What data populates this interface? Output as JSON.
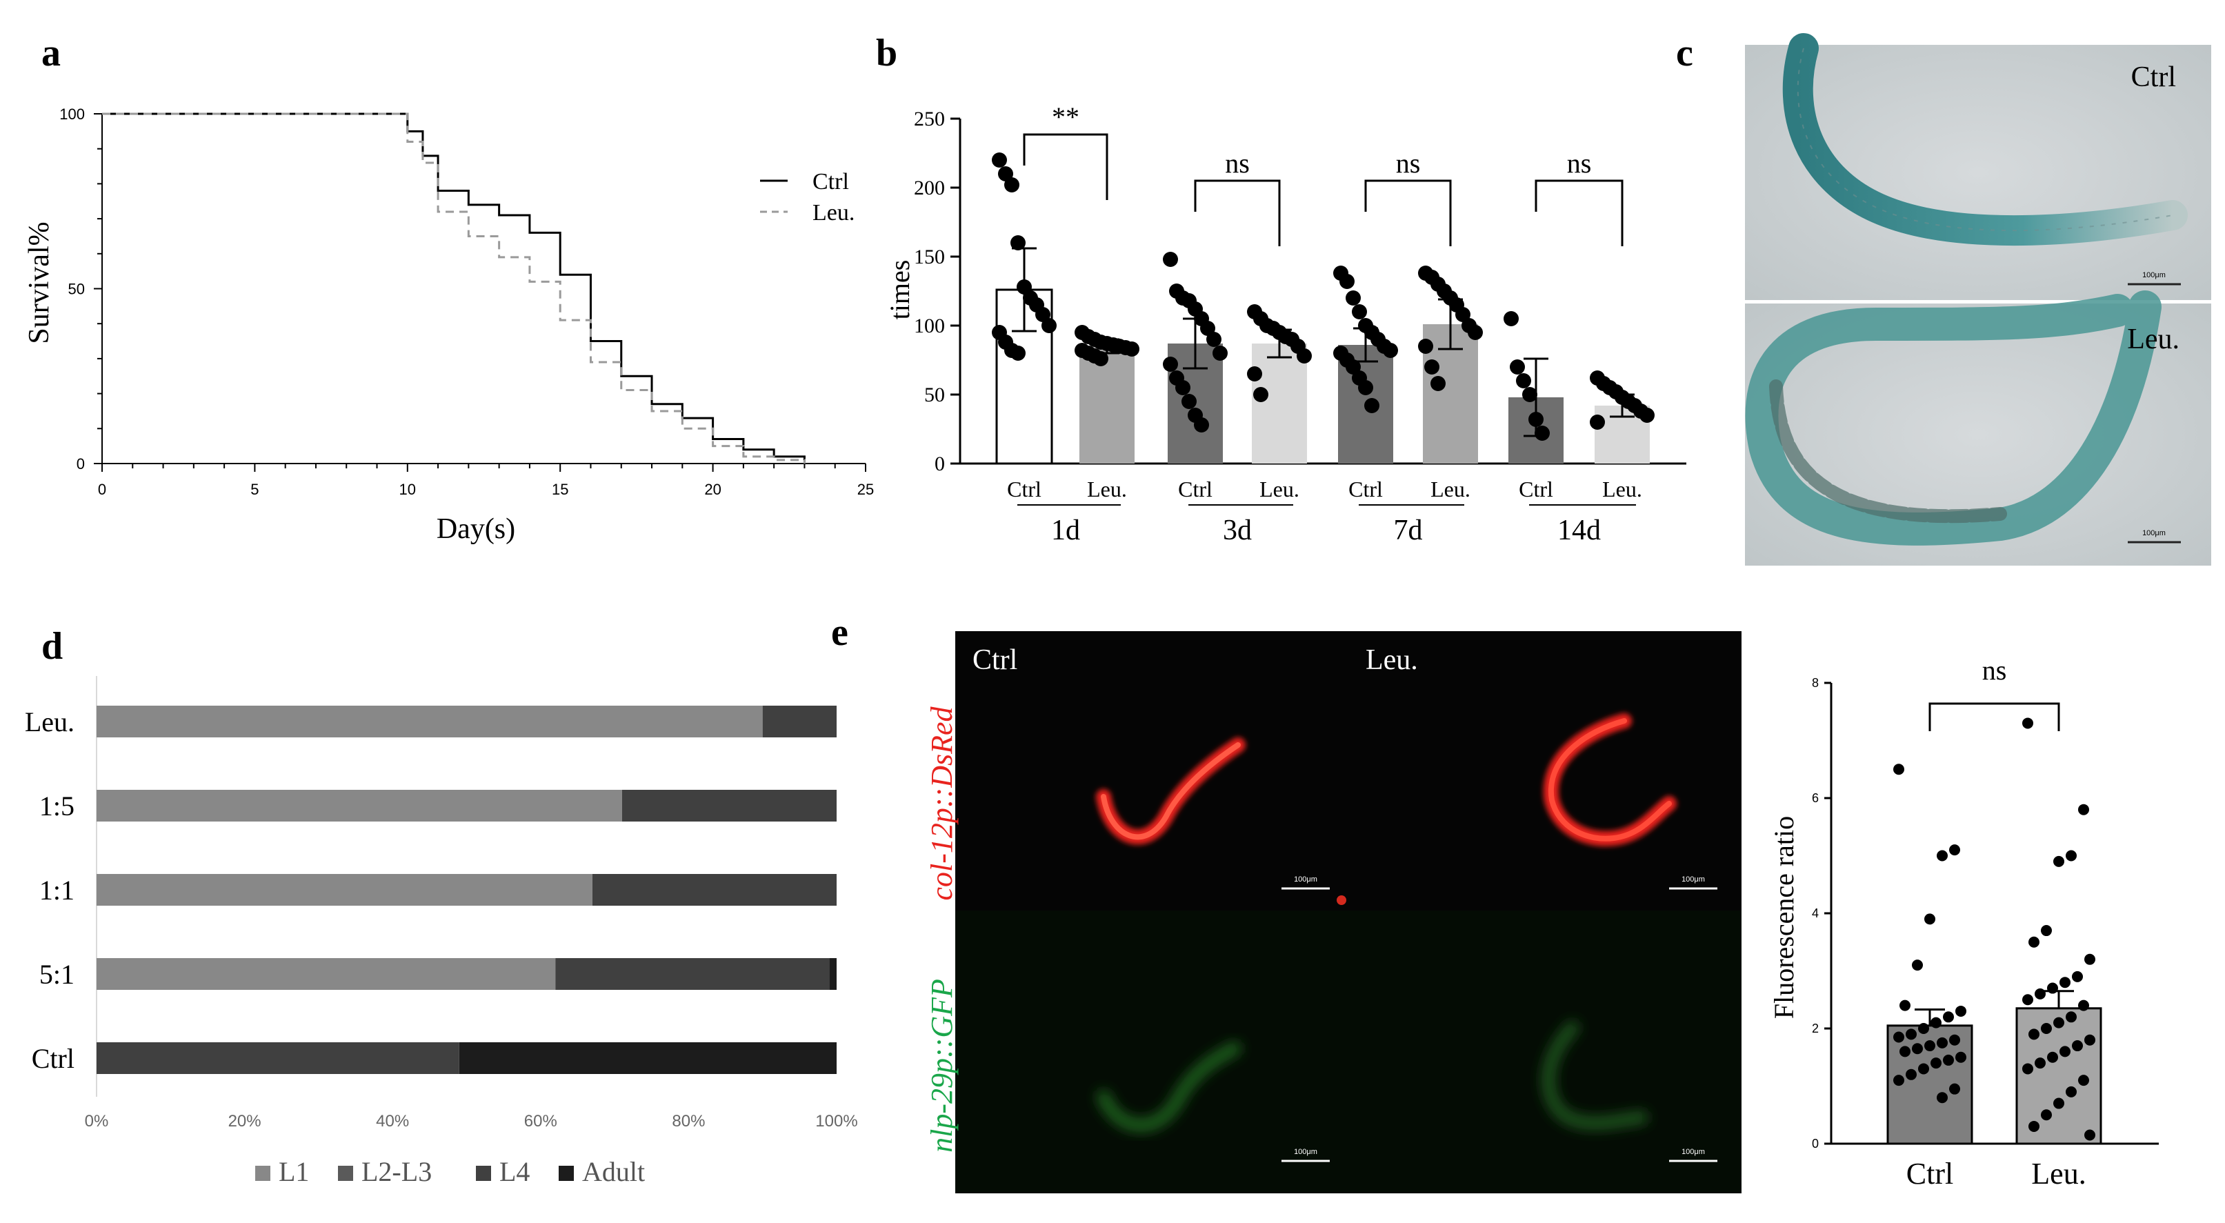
{
  "panels": {
    "a": {
      "letter": "a"
    },
    "b": {
      "letter": "b"
    },
    "c": {
      "letter": "c",
      "ctrl_label": "Ctrl",
      "leu_label": "Leu.",
      "scalebar_label": "100μm"
    },
    "d": {
      "letter": "d"
    },
    "e": {
      "letter": "e",
      "ctrl_label": "Ctrl",
      "leu_label": "Leu.",
      "red_channel_label": "col-12p::DsRed",
      "green_channel_label": "nlp-29p::GFP",
      "scalebar_label": "100μm"
    }
  },
  "colors": {
    "ctrl_line": "#000000",
    "leu_line": "#9a9a9a",
    "micrograph_bg": "#c9cfd1",
    "worm_teal": "#3f8f93",
    "dsred": "#e8231e",
    "gfp": "#1d5a1d"
  },
  "chart_data": [
    {
      "id": "a",
      "type": "line",
      "title": "",
      "xlabel": "Day(s)",
      "ylabel": "Survival%",
      "xlim": [
        0,
        25
      ],
      "ylim": [
        0,
        100
      ],
      "xticks": [
        0,
        5,
        10,
        15,
        20,
        25
      ],
      "yticks": [
        0,
        50,
        100
      ],
      "legend_position": "right",
      "series": [
        {
          "name": "Ctrl",
          "style": "solid",
          "x": [
            0,
            10,
            10.5,
            11,
            12,
            13,
            14,
            15,
            16,
            17,
            18,
            19,
            20,
            21,
            22,
            23
          ],
          "y": [
            100,
            95,
            88,
            78,
            74,
            71,
            66,
            54,
            35,
            25,
            17,
            13,
            7,
            4,
            2,
            0
          ]
        },
        {
          "name": "Leu.",
          "style": "dashed",
          "x": [
            0,
            10,
            10.5,
            11,
            12,
            13,
            14,
            15,
            16,
            17,
            18,
            19,
            20,
            21,
            22,
            23
          ],
          "y": [
            100,
            92,
            86,
            72,
            65,
            59,
            52,
            41,
            29,
            21,
            15,
            10,
            5,
            2,
            1,
            0
          ]
        }
      ]
    },
    {
      "id": "b",
      "type": "bar",
      "title": "",
      "xlabel": "",
      "ylabel": "times",
      "ylim": [
        0,
        250
      ],
      "yticks": [
        0,
        50,
        100,
        150,
        200,
        250
      ],
      "bar_labels": [
        "Ctrl",
        "Leu.",
        "Ctrl",
        "Leu.",
        "Ctrl",
        "Leu.",
        "Ctrl",
        "Leu."
      ],
      "groups": [
        "1d",
        "3d",
        "7d",
        "14d"
      ],
      "significance": [
        "**",
        "ns",
        "ns",
        "ns"
      ],
      "bar_fill": [
        "#ffffff",
        "#a6a6a6",
        "#6f6f6f",
        "#d9d9d9",
        "#6f6f6f",
        "#a6a6a6",
        "#6f6f6f",
        "#d9d9d9"
      ],
      "means": [
        126,
        85,
        87,
        87,
        86,
        101,
        48,
        42
      ],
      "errors": [
        30,
        5,
        18,
        10,
        12,
        18,
        28,
        8
      ],
      "points": [
        [
          220,
          210,
          202,
          160,
          128,
          120,
          115,
          108,
          100,
          95,
          88,
          82,
          80
        ],
        [
          95,
          92,
          90,
          88,
          87,
          86,
          85,
          84,
          83,
          82,
          80,
          78,
          76
        ],
        [
          148,
          125,
          120,
          118,
          112,
          105,
          98,
          90,
          80,
          72,
          62,
          55,
          45,
          35,
          28
        ],
        [
          110,
          105,
          100,
          98,
          95,
          92,
          90,
          85,
          78,
          65,
          50
        ],
        [
          138,
          132,
          120,
          110,
          100,
          95,
          90,
          85,
          82,
          80,
          75,
          70,
          62,
          55,
          42
        ],
        [
          138,
          135,
          130,
          125,
          120,
          115,
          108,
          100,
          95,
          85,
          70,
          58
        ],
        [
          105,
          70,
          60,
          50,
          32,
          22
        ],
        [
          62,
          58,
          55,
          52,
          48,
          45,
          42,
          38,
          35,
          30
        ]
      ]
    },
    {
      "id": "d",
      "type": "bar",
      "title": "",
      "orientation": "horizontal",
      "stacked": true,
      "xlim": [
        0,
        100
      ],
      "xticks": [
        "0%",
        "20%",
        "40%",
        "60%",
        "80%",
        "100%"
      ],
      "categories": [
        "Leu.",
        "1:5",
        "1:1",
        "5:1",
        "Ctrl"
      ],
      "legend_position": "bottom",
      "series": [
        {
          "name": "L1",
          "color": "#888888",
          "values": [
            90,
            71,
            67,
            62,
            0
          ]
        },
        {
          "name": "L2-L3",
          "color": "#5a5a5a",
          "values": [
            0,
            0,
            0,
            0,
            0
          ]
        },
        {
          "name": "L4",
          "color": "#404040",
          "values": [
            10,
            29,
            33,
            37,
            49
          ]
        },
        {
          "name": "Adult",
          "color": "#1c1c1c",
          "values": [
            0,
            0,
            0,
            1,
            51
          ]
        }
      ]
    },
    {
      "id": "e",
      "type": "bar",
      "title": "",
      "ylabel": "Fluorescence ratio",
      "ylim": [
        0,
        8
      ],
      "yticks": [
        0,
        2,
        4,
        6,
        8
      ],
      "categories": [
        "Ctrl",
        "Leu."
      ],
      "significance": [
        "ns"
      ],
      "bar_fill": [
        "#7f7f7f",
        "#a6a6a6"
      ],
      "means": [
        2.05,
        2.35
      ],
      "errors": [
        0.28,
        0.3
      ],
      "points": [
        [
          6.5,
          5.1,
          5.0,
          3.9,
          3.1,
          2.4,
          2.3,
          2.2,
          2.1,
          2.0,
          1.9,
          1.85,
          1.8,
          1.75,
          1.7,
          1.65,
          1.6,
          1.5,
          1.45,
          1.4,
          1.3,
          1.2,
          1.1,
          0.95,
          0.8
        ],
        [
          7.3,
          5.8,
          5.0,
          4.9,
          3.7,
          3.5,
          3.2,
          2.9,
          2.8,
          2.7,
          2.6,
          2.5,
          2.4,
          2.2,
          2.1,
          2.0,
          1.9,
          1.8,
          1.7,
          1.6,
          1.5,
          1.4,
          1.3,
          1.1,
          0.9,
          0.7,
          0.5,
          0.3,
          0.15
        ]
      ]
    }
  ]
}
